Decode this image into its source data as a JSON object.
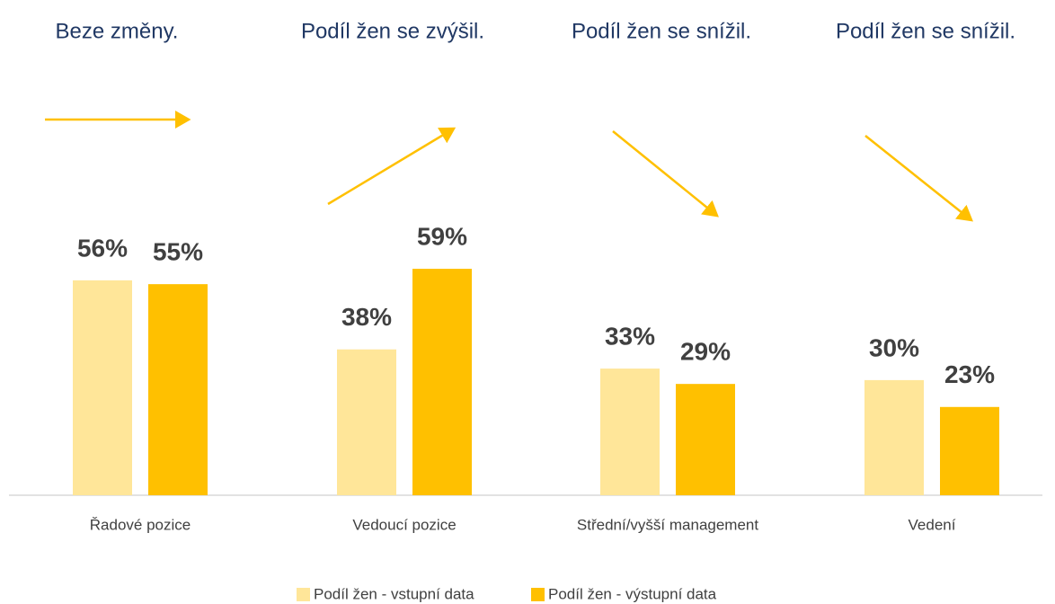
{
  "chart_data": {
    "type": "bar",
    "annotations": [
      "Beze změny.",
      "Podíl žen se zvýšil.",
      "Podíl žen se snížil.",
      "Podíl žen se snížil."
    ],
    "categories": [
      "Řadové pozice",
      "Vedoucí pozice",
      "Střední/vyšší management",
      "Vedení"
    ],
    "series": [
      {
        "name": "Podíl žen - vstupní data",
        "color": "#ffe699",
        "values": [
          56,
          38,
          33,
          30
        ],
        "value_labels": [
          "56%",
          "38%",
          "33%",
          "30%"
        ]
      },
      {
        "name": "Podíl žen - výstupní data",
        "color": "#ffc000",
        "values": [
          55,
          59,
          29,
          23
        ],
        "value_labels": [
          "55%",
          "59%",
          "29%",
          "23%"
        ]
      }
    ],
    "legend": "bottom"
  }
}
